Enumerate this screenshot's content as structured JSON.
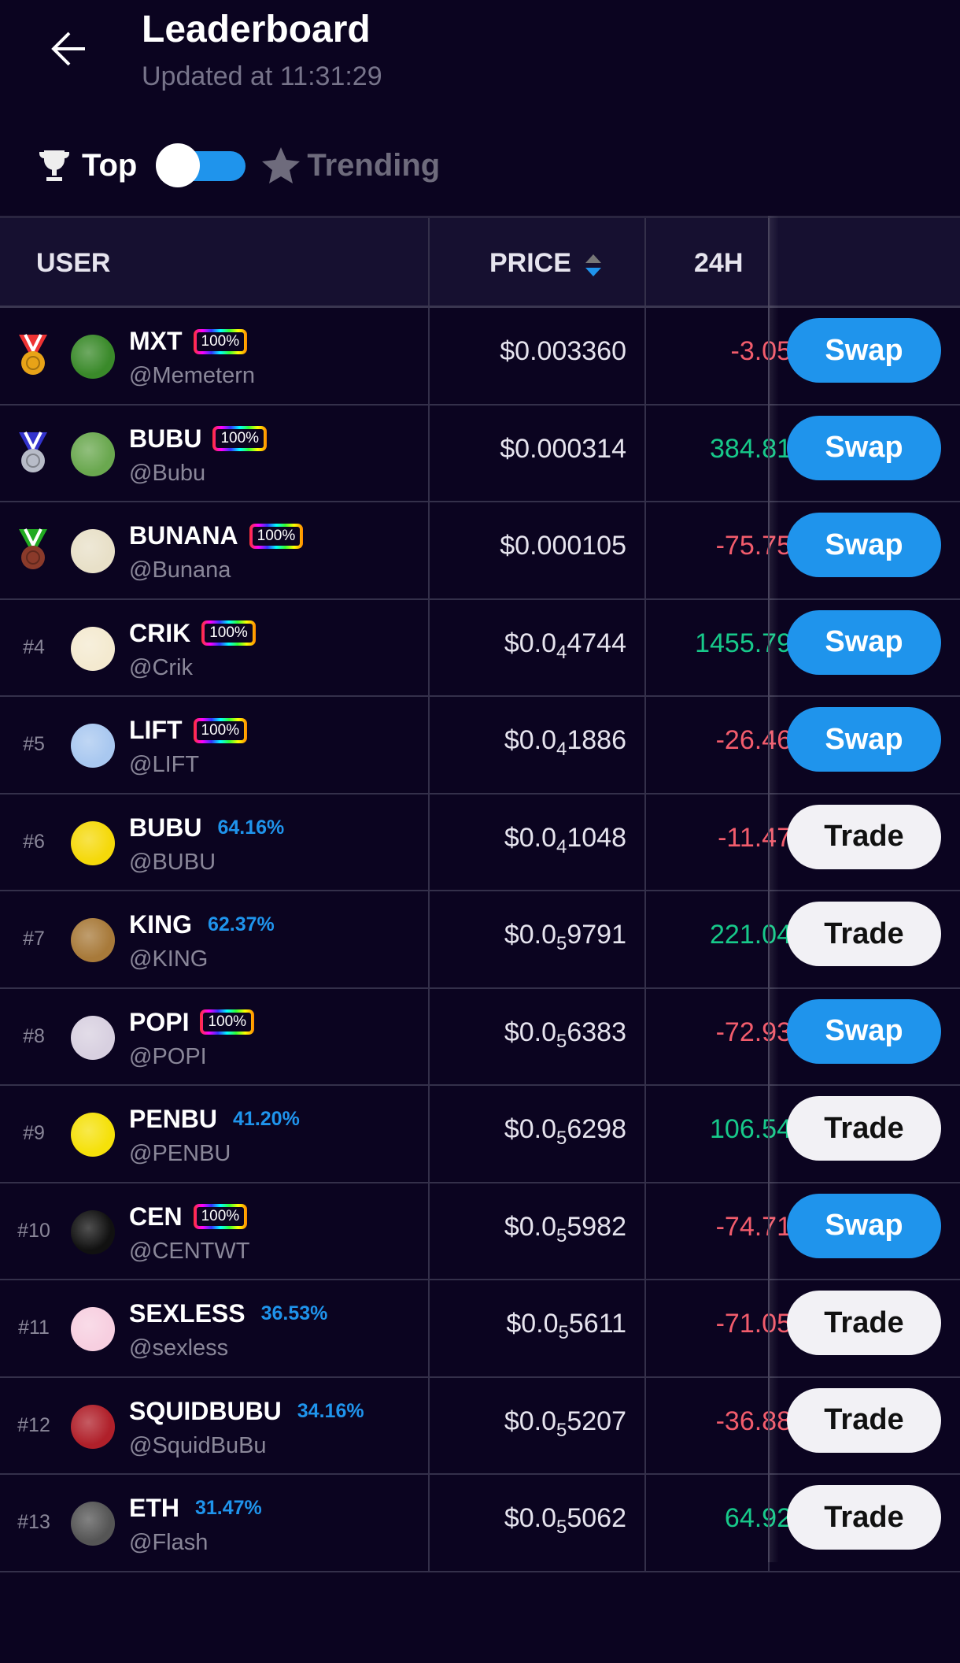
{
  "header": {
    "title": "Leaderboard",
    "updated": "Updated at 11:31:29"
  },
  "toggle": {
    "left_label": "Top",
    "right_label": "Trending",
    "state": "top",
    "accent": "#1f94ec"
  },
  "columns": {
    "user": "USER",
    "price": "PRICE",
    "change": "24H"
  },
  "rows": [
    {
      "rank": "1",
      "medal": "gold",
      "name": "MXT",
      "badge": "100%",
      "handle": "@Memetern",
      "price_pre": "$0.003360",
      "price_sub": "",
      "price_post": "",
      "change": "-3.05",
      "dir": "neg",
      "action": "Swap",
      "avatar": "#3a8a2a"
    },
    {
      "rank": "2",
      "medal": "silver",
      "name": "BUBU",
      "badge": "100%",
      "handle": "@Bubu",
      "price_pre": "$0.000314",
      "price_sub": "",
      "price_post": "",
      "change": "384.81",
      "dir": "pos",
      "action": "Swap",
      "avatar": "#6aa84f"
    },
    {
      "rank": "3",
      "medal": "bronze",
      "name": "BUNANA",
      "badge": "100%",
      "handle": "@Bunana",
      "price_pre": "$0.000105",
      "price_sub": "",
      "price_post": "",
      "change": "-75.75",
      "dir": "neg",
      "action": "Swap",
      "avatar": "#e8e0c8"
    },
    {
      "rank": "#4",
      "name": "CRIK",
      "badge": "100%",
      "handle": "@Crik",
      "price_pre": "$0.0",
      "price_sub": "4",
      "price_post": "4744",
      "change": "1455.79",
      "dir": "pos",
      "action": "Swap",
      "avatar": "#f4ead0"
    },
    {
      "rank": "#5",
      "name": "LIFT",
      "badge": "100%",
      "handle": "@LIFT",
      "price_pre": "$0.0",
      "price_sub": "4",
      "price_post": "1886",
      "change": "-26.46",
      "dir": "neg",
      "action": "Swap",
      "avatar": "#a9c8f0"
    },
    {
      "rank": "#6",
      "name": "BUBU",
      "pct": "64.16%",
      "handle": "@BUBU",
      "price_pre": "$0.0",
      "price_sub": "4",
      "price_post": "1048",
      "change": "-11.47",
      "dir": "neg",
      "action": "Trade",
      "avatar": "#f5d90a"
    },
    {
      "rank": "#7",
      "name": "KING",
      "pct": "62.37%",
      "handle": "@KING",
      "price_pre": "$0.0",
      "price_sub": "5",
      "price_post": "9791",
      "change": "221.04",
      "dir": "pos",
      "action": "Trade",
      "avatar": "#a87a3a"
    },
    {
      "rank": "#8",
      "name": "POPI",
      "badge": "100%",
      "handle": "@POPI",
      "price_pre": "$0.0",
      "price_sub": "5",
      "price_post": "6383",
      "change": "-72.93",
      "dir": "neg",
      "action": "Swap",
      "avatar": "#d8d0e0"
    },
    {
      "rank": "#9",
      "name": "PENBU",
      "pct": "41.20%",
      "handle": "@PENBU",
      "price_pre": "$0.0",
      "price_sub": "5",
      "price_post": "6298",
      "change": "106.54",
      "dir": "pos",
      "action": "Trade",
      "avatar": "#f5e10a"
    },
    {
      "rank": "#10",
      "name": "CEN",
      "badge": "100%",
      "handle": "@CENTWT",
      "price_pre": "$0.0",
      "price_sub": "5",
      "price_post": "5982",
      "change": "-74.71",
      "dir": "neg",
      "action": "Swap",
      "avatar": "#111111"
    },
    {
      "rank": "#11",
      "name": "SEXLESS",
      "pct": "36.53%",
      "handle": "@sexless",
      "price_pre": "$0.0",
      "price_sub": "5",
      "price_post": "5611",
      "change": "-71.05",
      "dir": "neg",
      "action": "Trade",
      "avatar": "#f7cfe0"
    },
    {
      "rank": "#12",
      "name": "SQUIDBUBU",
      "pct": "34.16%",
      "handle": "@SquidBuBu",
      "price_pre": "$0.0",
      "price_sub": "5",
      "price_post": "5207",
      "change": "-36.88",
      "dir": "neg",
      "action": "Trade",
      "avatar": "#b0202a"
    },
    {
      "rank": "#13",
      "name": "ETH",
      "pct": "31.47%",
      "handle": "@Flash",
      "price_pre": "$0.0",
      "price_sub": "5",
      "price_post": "5062",
      "change": "64.92",
      "dir": "pos",
      "action": "Trade",
      "avatar": "#555555"
    }
  ]
}
